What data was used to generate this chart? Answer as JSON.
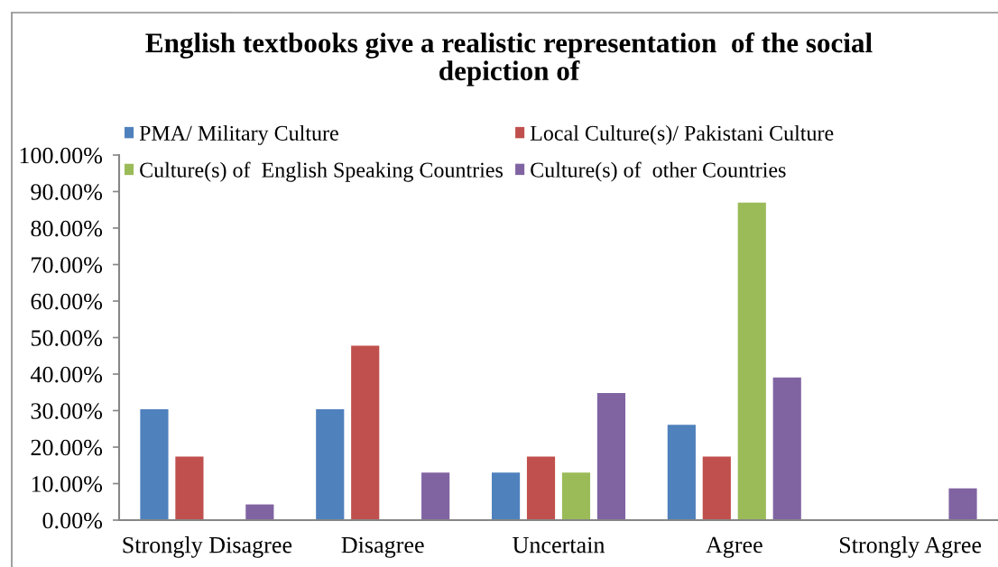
{
  "chart_data": {
    "type": "bar",
    "title": "English textbooks give a realistic representation  of the social depiction of",
    "categories": [
      "Strongly Disagree",
      "Disagree",
      "Uncertain",
      "Agree",
      "Strongly Agree"
    ],
    "series": [
      {
        "name": "PMA/ Military Culture",
        "color": "#4f81bd",
        "values": [
          30.4,
          30.4,
          13.0,
          26.1,
          0
        ]
      },
      {
        "name": "Local Culture(s)/ Pakistani Culture",
        "color": "#c0504d",
        "values": [
          17.4,
          47.8,
          17.4,
          17.4,
          0
        ]
      },
      {
        "name": "Culture(s) of  English Speaking Countries",
        "color": "#9bbb59",
        "values": [
          0,
          0,
          13.0,
          87.0,
          0
        ]
      },
      {
        "name": "Culture(s) of  other Countries",
        "color": "#8064a2",
        "values": [
          4.3,
          13.0,
          34.8,
          39.1,
          8.7
        ]
      }
    ],
    "ylim": [
      0,
      100
    ],
    "yticks": [
      {
        "value": 0,
        "label": "0.00%"
      },
      {
        "value": 10,
        "label": "10.00%"
      },
      {
        "value": 20,
        "label": "20.00%"
      },
      {
        "value": 30,
        "label": "30.00%"
      },
      {
        "value": 40,
        "label": "40.00%"
      },
      {
        "value": 50,
        "label": "50.00%"
      },
      {
        "value": 60,
        "label": "60.00%"
      },
      {
        "value": 70,
        "label": "70.00%"
      },
      {
        "value": 80,
        "label": "80.00%"
      },
      {
        "value": 90,
        "label": "90.00%"
      },
      {
        "value": 100,
        "label": "100.00%"
      }
    ],
    "legend": "top"
  }
}
